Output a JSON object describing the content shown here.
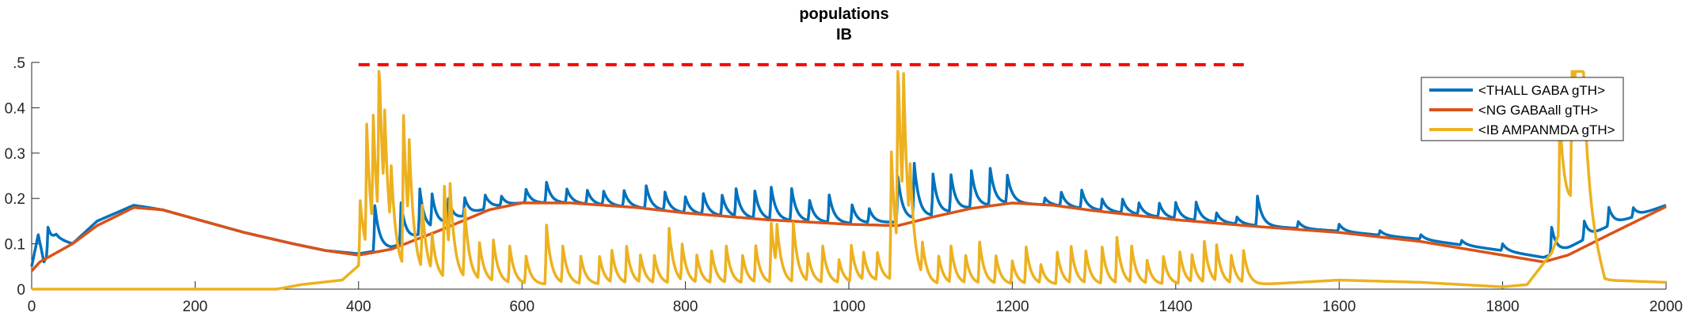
{
  "chart_data": {
    "type": "line",
    "title": "populations",
    "subtitle": "IB",
    "xlabel": "",
    "ylabel": "",
    "xlim": [
      0,
      2000
    ],
    "ylim": [
      0,
      0.5
    ],
    "x_ticks": [
      0,
      200,
      400,
      600,
      800,
      1000,
      1200,
      1400,
      1600,
      1800,
      2000
    ],
    "y_ticks": [
      0,
      0.1,
      0.2,
      0.3,
      0.4,
      0.5
    ],
    "y_tick_labels": [
      "0",
      "0.1",
      "0.2",
      "0.3",
      "0.4",
      ".5"
    ],
    "grid": false,
    "legend_position": "top-right",
    "annotation": {
      "style": "dashed-line",
      "color": "#FF0000",
      "x_range": [
        400,
        1490
      ],
      "y": 0.495
    },
    "series": [
      {
        "name": "<THALL GABA gTH>",
        "color": "#0072BD",
        "base": [
          [
            0,
            0.05
          ],
          [
            8,
            0.12
          ],
          [
            15,
            0.06
          ],
          [
            30,
            0.11
          ],
          [
            50,
            0.1
          ],
          [
            80,
            0.15
          ],
          [
            125,
            0.185
          ],
          [
            160,
            0.175
          ],
          [
            200,
            0.155
          ],
          [
            260,
            0.125
          ],
          [
            320,
            0.1
          ],
          [
            360,
            0.085
          ],
          [
            400,
            0.078
          ],
          [
            440,
            0.09
          ],
          [
            500,
            0.14
          ],
          [
            560,
            0.18
          ],
          [
            600,
            0.19
          ],
          [
            660,
            0.19
          ],
          [
            740,
            0.18
          ],
          [
            800,
            0.168
          ],
          [
            900,
            0.153
          ],
          [
            1000,
            0.145
          ],
          [
            1060,
            0.148
          ],
          [
            1100,
            0.16
          ],
          [
            1150,
            0.18
          ],
          [
            1200,
            0.19
          ],
          [
            1250,
            0.185
          ],
          [
            1300,
            0.175
          ],
          [
            1400,
            0.155
          ],
          [
            1500,
            0.14
          ],
          [
            1600,
            0.128
          ],
          [
            1700,
            0.11
          ],
          [
            1800,
            0.085
          ],
          [
            1850,
            0.07
          ],
          [
            1880,
            0.09
          ],
          [
            1930,
            0.14
          ],
          [
            2000,
            0.185
          ]
        ],
        "spikes": [
          [
            20,
            0.06
          ],
          [
            420,
            0.1
          ],
          [
            452,
            0.09
          ],
          [
            475,
            0.1
          ],
          [
            490,
            0.07
          ],
          [
            510,
            0.05
          ],
          [
            530,
            0.04
          ],
          [
            555,
            0.03
          ],
          [
            575,
            0.02
          ],
          [
            605,
            0.03
          ],
          [
            630,
            0.045
          ],
          [
            655,
            0.03
          ],
          [
            680,
            0.03
          ],
          [
            700,
            0.03
          ],
          [
            725,
            0.035
          ],
          [
            752,
            0.05
          ],
          [
            775,
            0.04
          ],
          [
            800,
            0.035
          ],
          [
            822,
            0.045
          ],
          [
            845,
            0.045
          ],
          [
            862,
            0.06
          ],
          [
            885,
            0.06
          ],
          [
            905,
            0.07
          ],
          [
            930,
            0.07
          ],
          [
            952,
            0.045
          ],
          [
            976,
            0.06
          ],
          [
            1004,
            0.04
          ],
          [
            1025,
            0.03
          ],
          [
            1060,
            0.1
          ],
          [
            1080,
            0.12
          ],
          [
            1103,
            0.09
          ],
          [
            1125,
            0.08
          ],
          [
            1150,
            0.08
          ],
          [
            1173,
            0.08
          ],
          [
            1194,
            0.06
          ],
          [
            1240,
            0.015
          ],
          [
            1260,
            0.03
          ],
          [
            1285,
            0.04
          ],
          [
            1310,
            0.025
          ],
          [
            1335,
            0.03
          ],
          [
            1355,
            0.025
          ],
          [
            1380,
            0.03
          ],
          [
            1400,
            0.035
          ],
          [
            1425,
            0.04
          ],
          [
            1450,
            0.02
          ],
          [
            1475,
            0.015
          ],
          [
            1500,
            0.065
          ],
          [
            1550,
            0.015
          ],
          [
            1600,
            0.015
          ],
          [
            1650,
            0.01
          ],
          [
            1700,
            0.01
          ],
          [
            1750,
            0.01
          ],
          [
            1800,
            0.015
          ],
          [
            1860,
            0.06
          ],
          [
            1900,
            0.04
          ],
          [
            1930,
            0.04
          ],
          [
            1960,
            0.02
          ]
        ]
      },
      {
        "name": "<NG GABAall gTH>",
        "color": "#D95319",
        "base": [
          [
            0,
            0.04
          ],
          [
            10,
            0.06
          ],
          [
            25,
            0.075
          ],
          [
            50,
            0.1
          ],
          [
            80,
            0.14
          ],
          [
            125,
            0.18
          ],
          [
            160,
            0.175
          ],
          [
            200,
            0.155
          ],
          [
            260,
            0.125
          ],
          [
            320,
            0.1
          ],
          [
            360,
            0.085
          ],
          [
            400,
            0.075
          ],
          [
            440,
            0.088
          ],
          [
            500,
            0.13
          ],
          [
            560,
            0.175
          ],
          [
            600,
            0.19
          ],
          [
            660,
            0.19
          ],
          [
            740,
            0.18
          ],
          [
            800,
            0.168
          ],
          [
            900,
            0.153
          ],
          [
            1000,
            0.143
          ],
          [
            1060,
            0.14
          ],
          [
            1100,
            0.158
          ],
          [
            1150,
            0.178
          ],
          [
            1200,
            0.19
          ],
          [
            1250,
            0.185
          ],
          [
            1300,
            0.173
          ],
          [
            1400,
            0.153
          ],
          [
            1500,
            0.138
          ],
          [
            1600,
            0.125
          ],
          [
            1700,
            0.105
          ],
          [
            1800,
            0.075
          ],
          [
            1850,
            0.06
          ],
          [
            1880,
            0.075
          ],
          [
            1930,
            0.12
          ],
          [
            2000,
            0.182
          ]
        ],
        "spikes": []
      },
      {
        "name": "<IB AMPANMDA gTH>",
        "color": "#EDB120",
        "base": [
          [
            0,
            0.0
          ],
          [
            300,
            0.0
          ],
          [
            330,
            0.01
          ],
          [
            380,
            0.02
          ],
          [
            405,
            0.06
          ],
          [
            440,
            0.04
          ],
          [
            490,
            0.02
          ],
          [
            600,
            0.01
          ],
          [
            1000,
            0.012
          ],
          [
            1060,
            0.02
          ],
          [
            1100,
            0.01
          ],
          [
            1300,
            0.01
          ],
          [
            1500,
            0.01
          ],
          [
            1550,
            0.015
          ],
          [
            1600,
            0.02
          ],
          [
            1700,
            0.015
          ],
          [
            1800,
            0.005
          ],
          [
            1830,
            0.01
          ],
          [
            1860,
            0.08
          ],
          [
            1875,
            0.15
          ],
          [
            1890,
            0.2
          ],
          [
            1905,
            0.15
          ],
          [
            1925,
            0.02
          ],
          [
            2000,
            0.015
          ]
        ],
        "spikes": [
          [
            402,
            0.14
          ],
          [
            410,
            0.27
          ],
          [
            418,
            0.25
          ],
          [
            425,
            0.38
          ],
          [
            432,
            0.2
          ],
          [
            440,
            0.14
          ],
          [
            455,
            0.33
          ],
          [
            462,
            0.19
          ],
          [
            478,
            0.14
          ],
          [
            490,
            0.08
          ],
          [
            505,
            0.2
          ],
          [
            512,
            0.15
          ],
          [
            530,
            0.15
          ],
          [
            548,
            0.08
          ],
          [
            565,
            0.09
          ],
          [
            585,
            0.08
          ],
          [
            605,
            0.06
          ],
          [
            630,
            0.13
          ],
          [
            650,
            0.08
          ],
          [
            672,
            0.06
          ],
          [
            695,
            0.06
          ],
          [
            710,
            0.07
          ],
          [
            728,
            0.08
          ],
          [
            745,
            0.06
          ],
          [
            762,
            0.06
          ],
          [
            780,
            0.12
          ],
          [
            796,
            0.08
          ],
          [
            814,
            0.06
          ],
          [
            832,
            0.07
          ],
          [
            850,
            0.08
          ],
          [
            870,
            0.06
          ],
          [
            886,
            0.08
          ],
          [
            905,
            0.13
          ],
          [
            912,
            0.09
          ],
          [
            932,
            0.13
          ],
          [
            950,
            0.06
          ],
          [
            968,
            0.08
          ],
          [
            988,
            0.05
          ],
          [
            1003,
            0.08
          ],
          [
            1018,
            0.06
          ],
          [
            1035,
            0.06
          ],
          [
            1052,
            0.28
          ],
          [
            1060,
            0.43
          ],
          [
            1067,
            0.3
          ],
          [
            1075,
            0.14
          ],
          [
            1090,
            0.07
          ],
          [
            1110,
            0.06
          ],
          [
            1125,
            0.08
          ],
          [
            1143,
            0.06
          ],
          [
            1160,
            0.09
          ],
          [
            1180,
            0.06
          ],
          [
            1200,
            0.05
          ],
          [
            1217,
            0.08
          ],
          [
            1235,
            0.04
          ],
          [
            1255,
            0.07
          ],
          [
            1272,
            0.08
          ],
          [
            1290,
            0.07
          ],
          [
            1310,
            0.08
          ],
          [
            1328,
            0.1
          ],
          [
            1346,
            0.08
          ],
          [
            1365,
            0.05
          ],
          [
            1385,
            0.06
          ],
          [
            1405,
            0.07
          ],
          [
            1420,
            0.06
          ],
          [
            1435,
            0.09
          ],
          [
            1450,
            0.08
          ],
          [
            1468,
            0.06
          ],
          [
            1483,
            0.07
          ],
          [
            1870,
            0.26
          ],
          [
            1885,
            0.36
          ],
          [
            1890,
            0.48
          ],
          [
            1895,
            0.32
          ]
        ]
      }
    ]
  }
}
